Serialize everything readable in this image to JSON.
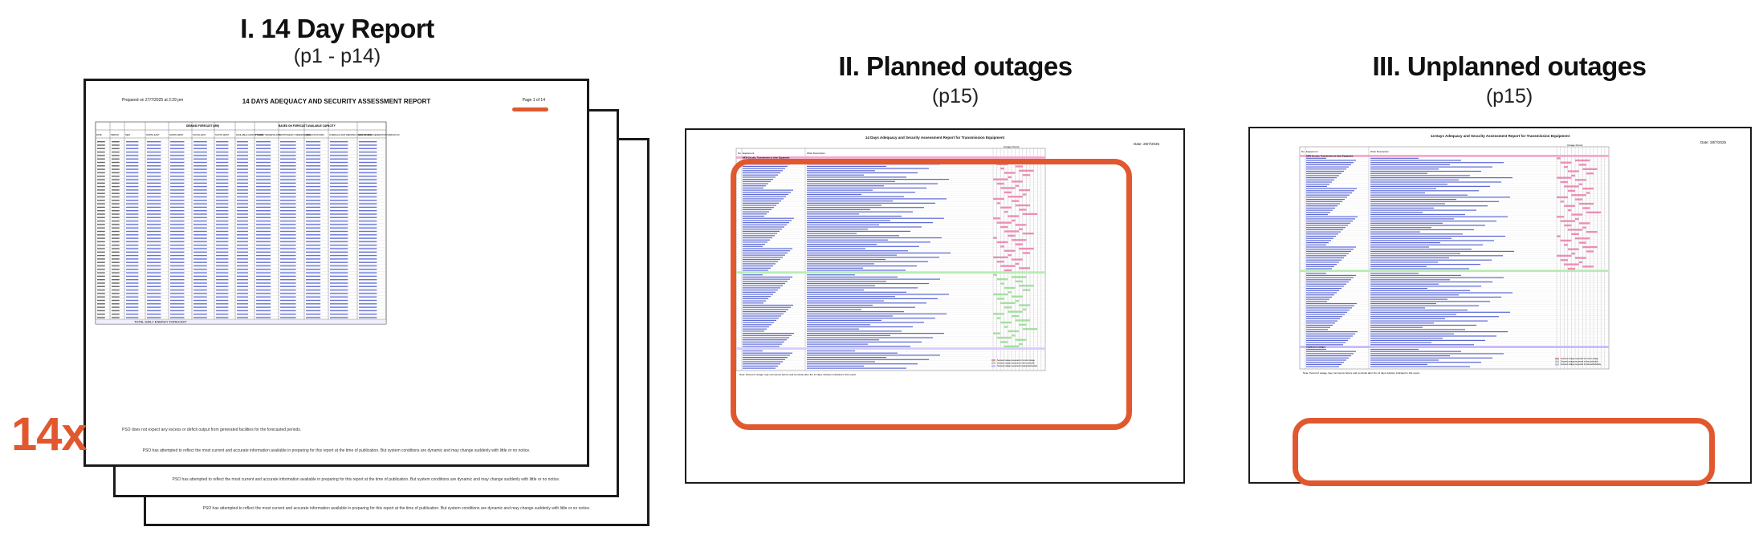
{
  "sections": [
    {
      "title": "I. 14 Day Report",
      "subtitle": "(p1 - p14)"
    },
    {
      "title": "II. Planned outages",
      "subtitle": "(p15)"
    },
    {
      "title": "III. Unplanned outages",
      "subtitle": "(p15)"
    }
  ],
  "report_count": "14x",
  "report_page": {
    "prepared": "Prepared on 27/7/2025 at 2:29 pm",
    "title": "14 DAYS ADEQUACY AND SECURITY ASSESSMENT REPORT",
    "page_label": "Page 1 of 14",
    "header_group_demand": "DEMAND FORECAST (MW)",
    "header_group_capacity": "BASED ON FORECAST AVAILABLE CAPACITY",
    "columns": [
      "DATE",
      "PERIOD",
      "NEM",
      "NORTH EAST",
      "NORTH WEST",
      "SOUTH EAST",
      "SOUTH WEST",
      "AVAILABLE CAPACITY (MW)",
      "PRIMARY RESERVE (MW)",
      "CONTINGENCY RESERVE (MW)",
      "REGULATION (MW)",
      "OVERHAUL AND DERATED CAPACITY (MW)",
      "NEW DEMAND GENERATION MARGIN (%)"
    ],
    "total_row_label": "TOTAL DAILY ENERGY FORECAST",
    "footer_note_1": "PSO does not expect any excess or deficit output from generated facilities for the forecasted periods.",
    "footer_note_2": "PSO has attempted to reflect the most current and accurate information available in preparing for this report at the time of publication. But system conditions are dynamic and may change suddenly with little or no notice."
  },
  "outage_page": {
    "title": "14 Days Adequacy and Security Assessment Report for Transmission Equipment",
    "date_label": "Date: 28/7/2025",
    "header_no": "No",
    "header_equipment": "Equipment",
    "header_work": "Work Description",
    "header_period": "Outage Period",
    "group_substations": "NEW Circuits, Transformers & other Equipment",
    "group_unplanned": "Unplanned outages",
    "note": "Note: Period of outage may commence before and conclude after the 14 days duration indicated in this report.",
    "legend": [
      "Secured outage requested in current outage",
      "Secured outage requested in sleet schedule",
      "Secured outage requested ln planned/schedule"
    ]
  }
}
